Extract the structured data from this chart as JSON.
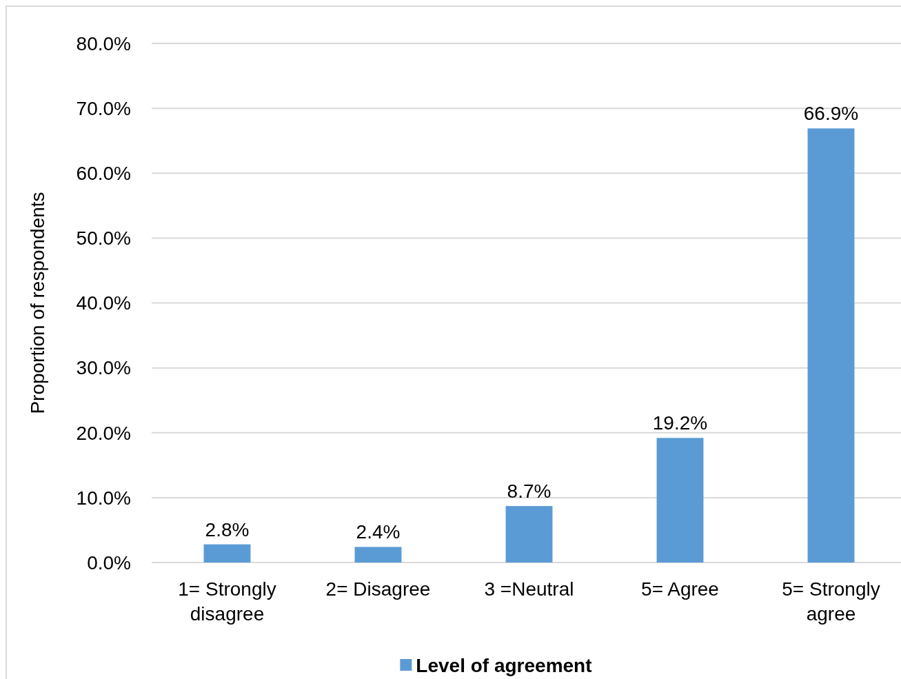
{
  "chart_data": {
    "type": "bar",
    "ylabel": "Proportion of respondents",
    "categories": [
      "1= Strongly disagree",
      "2= Disagree",
      "3 =Neutral",
      "5= Agree",
      "5= Strongly agree"
    ],
    "series": [
      {
        "name": "Level of agreement",
        "color": "#5b9bd5",
        "values": [
          2.8,
          2.4,
          8.7,
          19.2,
          66.9
        ],
        "value_labels": [
          "2.8%",
          "2.4%",
          "8.7%",
          "19.2%",
          "66.9%"
        ]
      }
    ],
    "ylim": [
      0,
      80
    ],
    "yticks": [
      {
        "value": 0,
        "label": "0.0%"
      },
      {
        "value": 10,
        "label": "10.0%"
      },
      {
        "value": 20,
        "label": "20.0%"
      },
      {
        "value": 30,
        "label": "30.0%"
      },
      {
        "value": 40,
        "label": "40.0%"
      },
      {
        "value": 50,
        "label": "50.0%"
      },
      {
        "value": 60,
        "label": "60.0%"
      },
      {
        "value": 70,
        "label": "70.0%"
      },
      {
        "value": 80,
        "label": "80.0%"
      }
    ],
    "grid": "y",
    "legend": "bottom"
  }
}
